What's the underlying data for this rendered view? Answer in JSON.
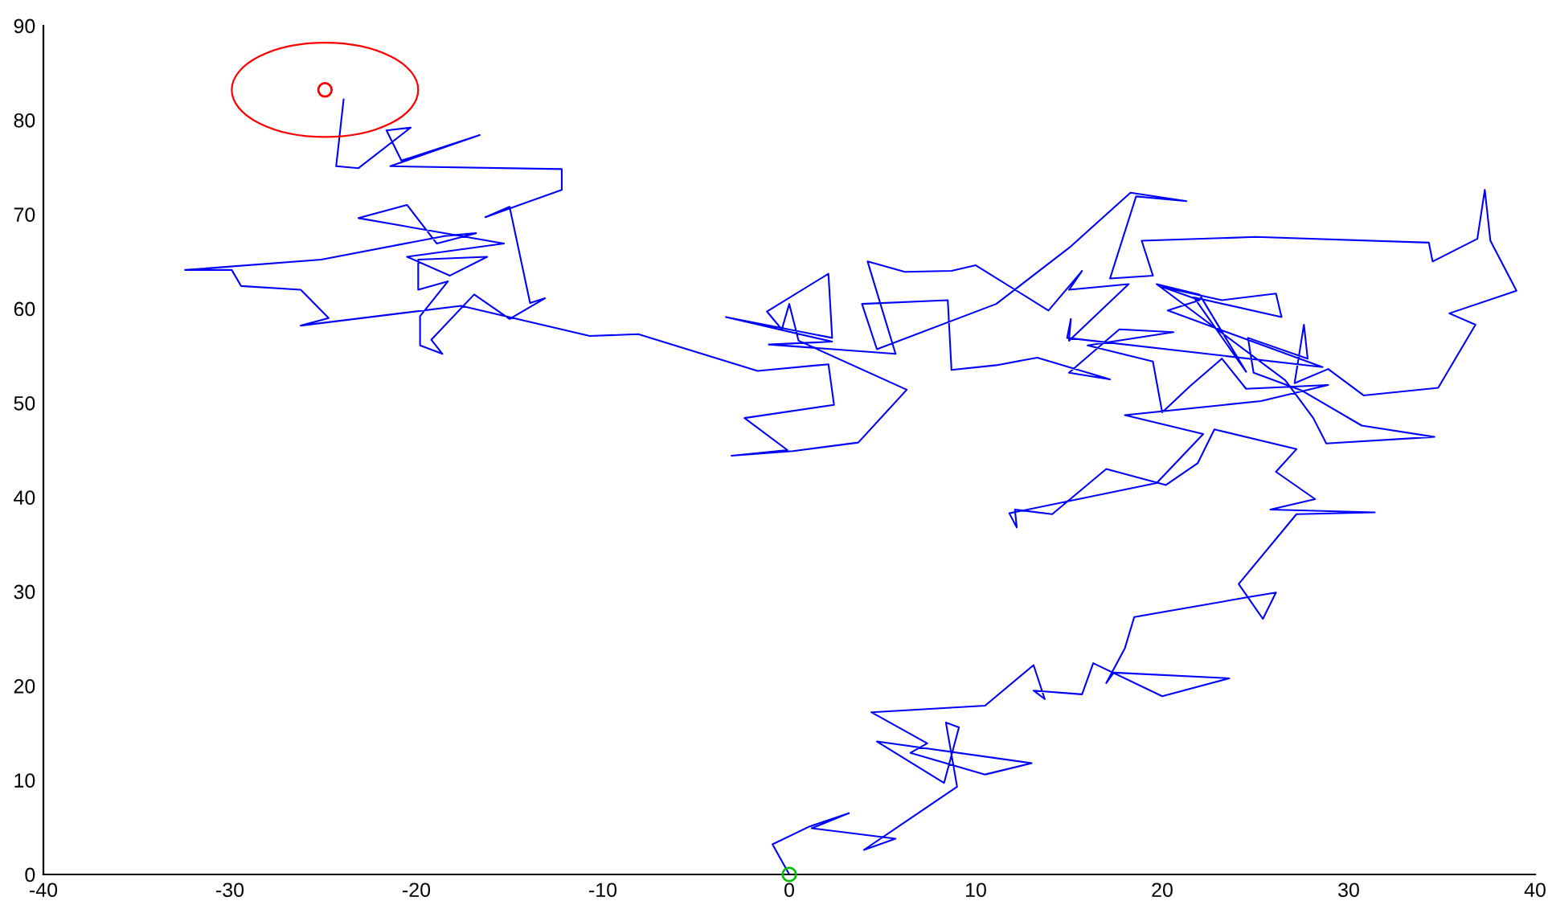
{
  "chart_data": {
    "type": "line",
    "xlim": [
      -40,
      40
    ],
    "ylim": [
      0,
      90
    ],
    "xticks": [
      -40,
      -30,
      -20,
      -10,
      0,
      10,
      20,
      30,
      40
    ],
    "yticks": [
      0,
      10,
      20,
      30,
      40,
      50,
      60,
      70,
      80,
      90
    ],
    "series": [
      {
        "color": "#0000ff",
        "x": [
          0,
          -0.9,
          1.1,
          3.2,
          1.2,
          5.7,
          4.0,
          9.0,
          8.4,
          9.1,
          8.3,
          4.7,
          13.0,
          10.5,
          6.5,
          7.4,
          4.4,
          10.5,
          13.1,
          13.7,
          13.1,
          15.7,
          16.3,
          20.0,
          23.6,
          17.4,
          17.0,
          18.0,
          18.5,
          24.6,
          26.1,
          25.4,
          24.1,
          27.2,
          31.4,
          25.8,
          28.2,
          26.1,
          27.2,
          22.8,
          21.9,
          20.2,
          17.0,
          14.1,
          12.1,
          12.2,
          11.8,
          19.7,
          22.2,
          18.0,
          25.3,
          28.9,
          24.5,
          23.2,
          21.5,
          20.0,
          19.5,
          16.0,
          20.6,
          17.7,
          15.0,
          17.2,
          13.3,
          11.1,
          8.7,
          8.5,
          3.9,
          4.7,
          11.1,
          15.1,
          18.3,
          21.3,
          18.6,
          17.2,
          19.5,
          18.9,
          25.0,
          34.3,
          34.5,
          36.9,
          37.3,
          37.6,
          39.0,
          35.4,
          36.8,
          34.8,
          30.8,
          28.9,
          27.1,
          27.6,
          27.8,
          24.6,
          24.9,
          27.5,
          30.7,
          34.6,
          28.8,
          28.1,
          26.6,
          19.7,
          22.0,
          24.5,
          21.7,
          26.4,
          26.1,
          23.2,
          20.0,
          22.0,
          20.3,
          28.6,
          14.9,
          15.1,
          15.0,
          18.2,
          15.0,
          15.7,
          13.9,
          10.0,
          8.7,
          6.2,
          4.2,
          5.7,
          -1.1,
          2.3,
          -3.4,
          2.3,
          2.1,
          -1.2,
          -0.4,
          0.0,
          0.5,
          6.3,
          3.7,
          0.2,
          -3.1,
          -0.1,
          -2.4,
          2.4,
          2.1,
          -1.7,
          -8.1,
          -10.7,
          -17.6,
          -26.2,
          -24.7,
          -26.2,
          -29.4,
          -29.9,
          -32.4,
          -25.1,
          -18.5,
          -16.8,
          -18.9,
          -20.5,
          -23.1,
          -15.3,
          -20.5,
          -18.2,
          -16.2,
          -19.9,
          -19.9,
          -18.3,
          -19.8,
          -19.8,
          -18.6,
          -19.2,
          -16.9,
          -15.0,
          -13.1,
          -13.9,
          -15.0,
          -16.3,
          -12.2,
          -12.2,
          -21.4,
          -16.6,
          -20.8,
          -21.6,
          -20.3,
          -23.1,
          -24.3,
          -23.9
        ],
        "values": [
          0,
          3.2,
          5.1,
          6.5,
          4.9,
          3.8,
          2.6,
          9.3,
          16.1,
          15.6,
          9.7,
          14.1,
          11.8,
          10.6,
          12.9,
          13.9,
          17.2,
          17.9,
          22.2,
          18.6,
          19.5,
          19.1,
          22.4,
          18.9,
          20.8,
          21.4,
          20.3,
          24.0,
          27.3,
          29.4,
          29.9,
          27.1,
          30.8,
          38.2,
          38.4,
          38.7,
          39.8,
          42.7,
          45.1,
          47.2,
          43.6,
          41.3,
          43.0,
          38.2,
          38.7,
          36.8,
          38.3,
          41.5,
          46.7,
          48.7,
          50.2,
          51.9,
          51.5,
          54.7,
          51.8,
          49.0,
          54.4,
          56.1,
          57.5,
          57.8,
          53.2,
          52.5,
          54.8,
          54.0,
          53.5,
          60.9,
          60.5,
          55.7,
          60.5,
          66.6,
          72.3,
          71.4,
          71.9,
          63.2,
          63.5,
          67.2,
          67.6,
          67.0,
          65.0,
          67.4,
          72.6,
          67.2,
          61.9,
          59.5,
          58.3,
          51.6,
          50.8,
          53.6,
          52.1,
          58.3,
          54.7,
          56.9,
          53.2,
          51.3,
          47.6,
          46.4,
          45.7,
          48.4,
          52.4,
          62.6,
          61.5,
          53.3,
          61.2,
          59.1,
          61.6,
          60.9,
          62.3,
          60.9,
          59.8,
          53.8,
          56.9,
          58.9,
          56.6,
          62.6,
          62.0,
          64.0,
          59.8,
          64.6,
          64.0,
          63.9,
          65.0,
          55.2,
          56.2,
          56.5,
          59.1,
          56.9,
          63.7,
          59.7,
          57.8,
          60.5,
          56.6,
          51.4,
          45.8,
          44.9,
          44.4,
          45.0,
          48.4,
          49.8,
          54.1,
          53.4,
          57.3,
          57.1,
          60.3,
          58.2,
          59.0,
          62.0,
          62.4,
          64.1,
          64.1,
          65.2,
          67.7,
          68.0,
          66.9,
          71.0,
          69.6,
          66.9,
          65.5,
          63.5,
          65.5,
          65.2,
          62.0,
          62.9,
          59.2,
          56.1,
          55.2,
          56.7,
          61.5,
          58.9,
          61.1,
          60.6,
          70.8,
          69.7,
          72.6,
          74.8,
          75.1,
          78.4,
          75.7,
          78.9,
          79.2,
          74.9,
          75.1,
          82.2
        ]
      },
      {
        "type": "scatter",
        "color": "#ff0000",
        "marker": "circle",
        "x": [
          -24.9
        ],
        "values": [
          83.2
        ]
      },
      {
        "type": "scatter",
        "color": "#00c000",
        "marker": "circle",
        "x": [
          0
        ],
        "values": [
          0
        ]
      }
    ]
  }
}
